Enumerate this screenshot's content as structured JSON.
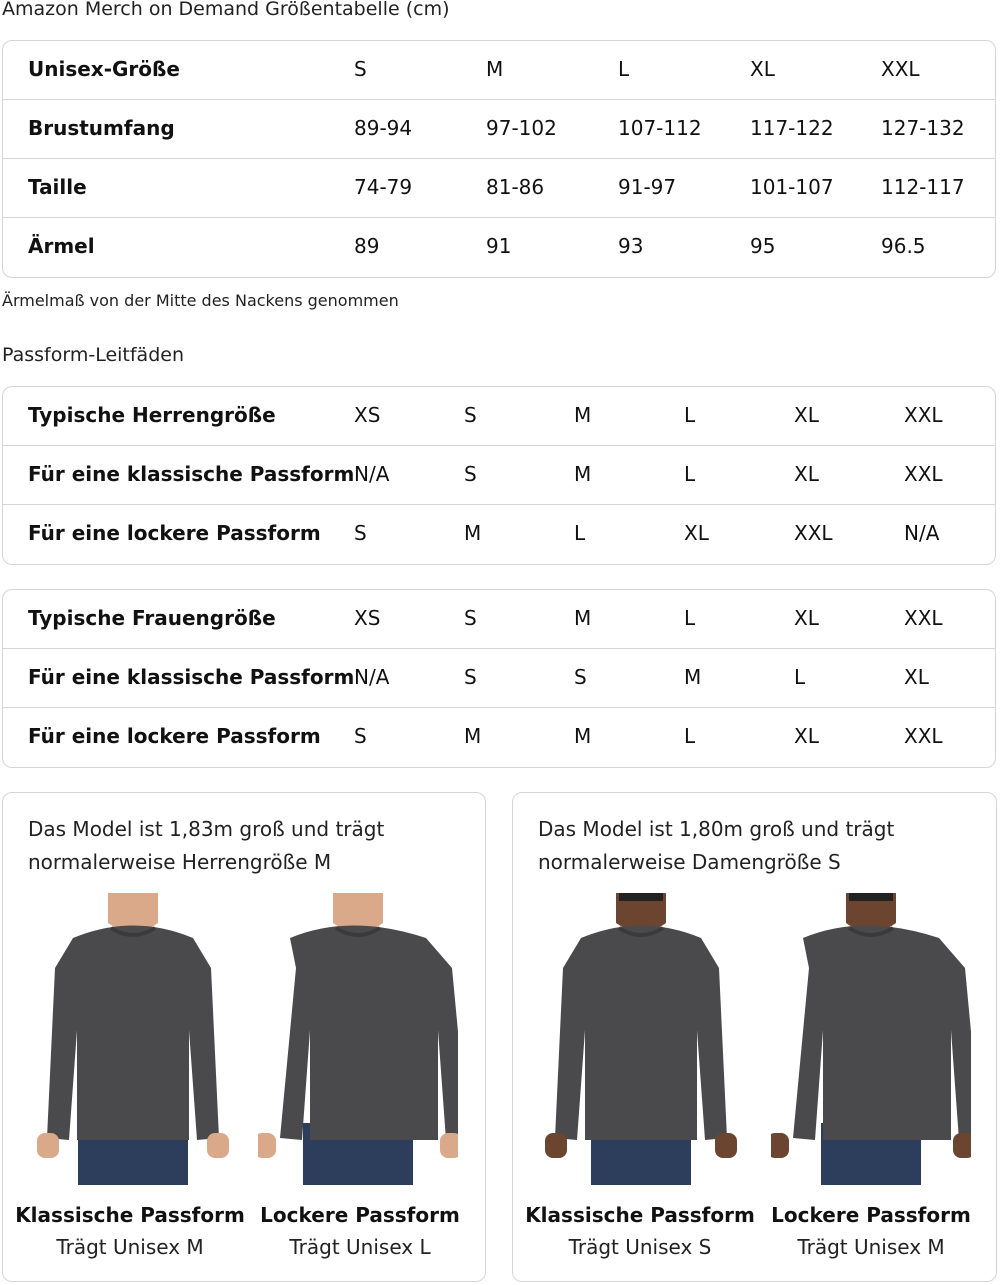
{
  "title": "Amazon Merch on Demand Größentabelle (cm)",
  "size_table": {
    "rows": [
      {
        "label": "Unisex-Größe",
        "values": [
          "S",
          "M",
          "L",
          "XL",
          "XXL"
        ]
      },
      {
        "label": "Brustumfang",
        "values": [
          "89-94",
          "97-102",
          "107-112",
          "117-122",
          "127-132"
        ]
      },
      {
        "label": "Taille",
        "values": [
          "74-79",
          "81-86",
          "91-97",
          "101-107",
          "112-117"
        ]
      },
      {
        "label": "Ärmel",
        "values": [
          "89",
          "91",
          "93",
          "95",
          "96.5"
        ]
      }
    ]
  },
  "note": "Ärmelmaß von der Mitte des Nackens genommen",
  "fit_title": "Passform-Leitfäden",
  "men_table": {
    "rows": [
      {
        "label": "Typische Herrengröße",
        "values": [
          "XS",
          "S",
          "M",
          "L",
          "XL",
          "XXL"
        ]
      },
      {
        "label": "Für eine klassische Passform",
        "values": [
          "N/A",
          "S",
          "M",
          "L",
          "XL",
          "XXL"
        ]
      },
      {
        "label": "Für eine lockere Passform",
        "values": [
          "S",
          "M",
          "L",
          "XL",
          "XXL",
          "N/A"
        ]
      }
    ]
  },
  "women_table": {
    "rows": [
      {
        "label": "Typische Frauengröße",
        "values": [
          "XS",
          "S",
          "M",
          "L",
          "XL",
          "XXL"
        ]
      },
      {
        "label": "Für eine klassische Passform",
        "values": [
          "N/A",
          "S",
          "S",
          "M",
          "L",
          "XL"
        ]
      },
      {
        "label": "Für eine lockere Passform",
        "values": [
          "S",
          "M",
          "M",
          "L",
          "XL",
          "XXL"
        ]
      }
    ]
  },
  "cards": [
    {
      "caption_1": "Das Model ist 1,83m groß und trägt",
      "caption_2": "normalerweise Herrengröße M",
      "fits": [
        {
          "name": "Klassische Passform",
          "wears": "Trägt Unisex M"
        },
        {
          "name": "Lockere Passform",
          "wears": "Trägt Unisex L"
        }
      ]
    },
    {
      "caption_1": "Das Model ist 1,80m groß und trägt",
      "caption_2": "normalerweise Damengröße S",
      "fits": [
        {
          "name": "Klassische Passform",
          "wears": "Trägt Unisex S"
        },
        {
          "name": "Lockere Passform",
          "wears": "Trägt Unisex M"
        }
      ]
    }
  ],
  "colors": {
    "border": "#d5d5d5",
    "sweater": "#4a4a4c",
    "jeans": "#2c3e5c",
    "skin": "#d9a98a",
    "skin_dark": "#6b4530"
  }
}
